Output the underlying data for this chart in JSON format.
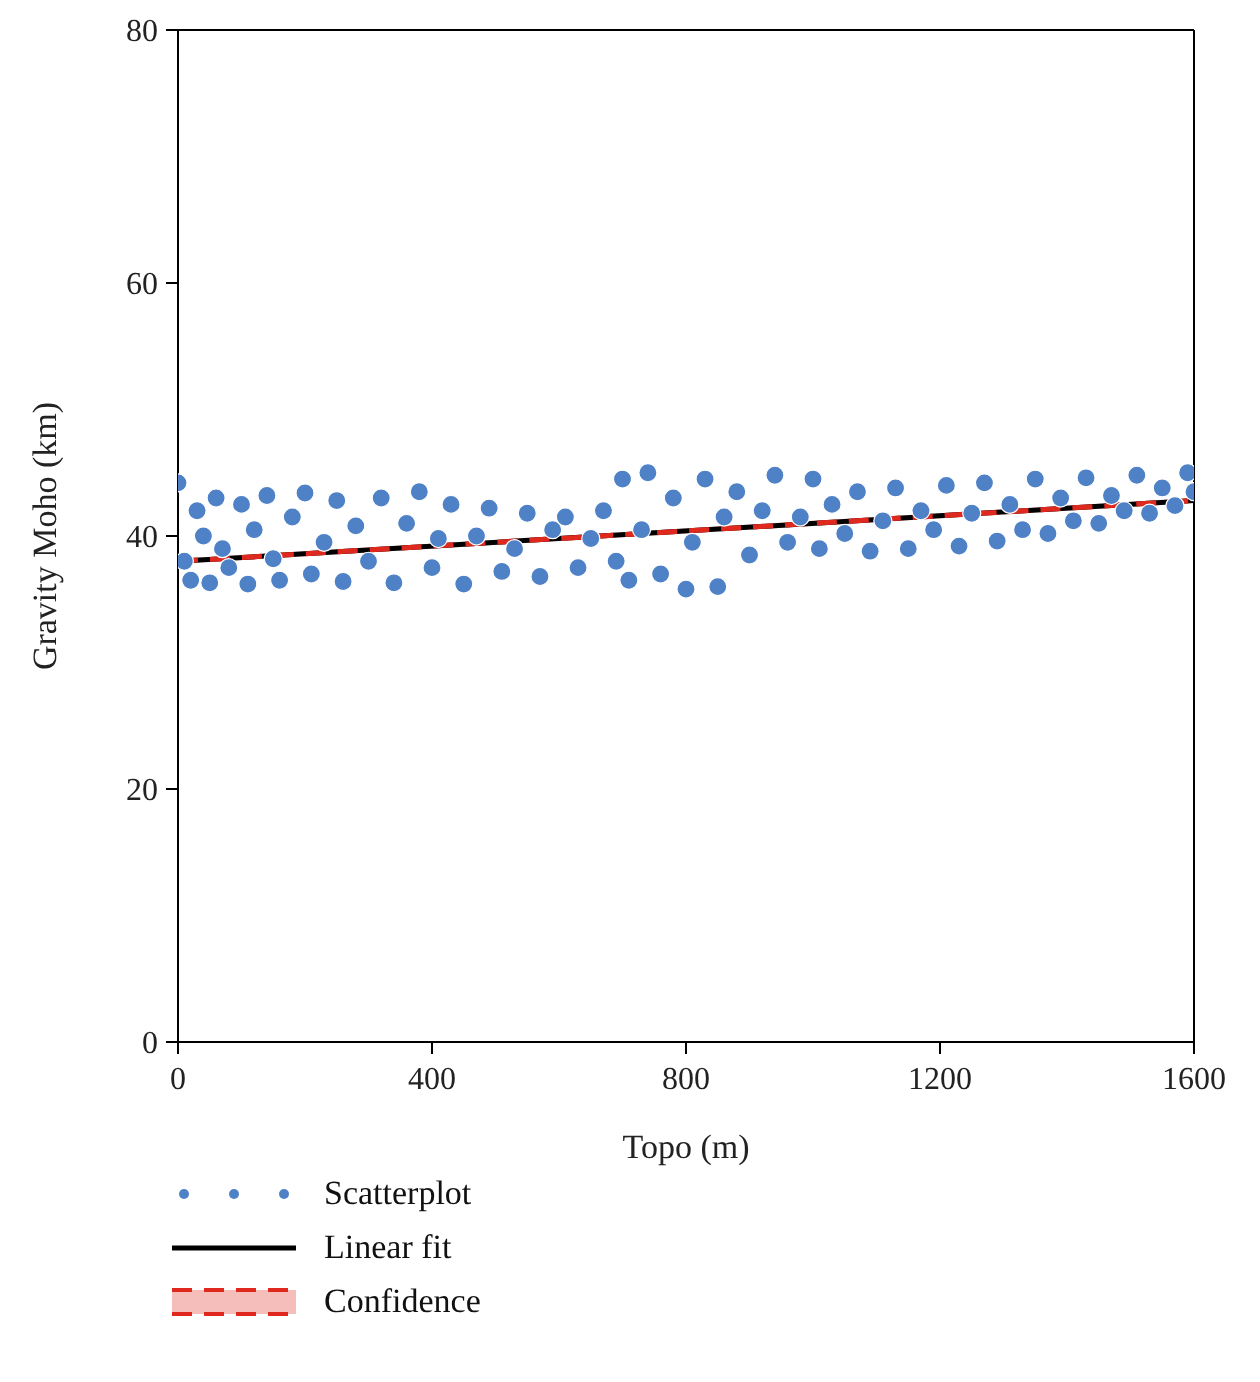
{
  "chart_data": {
    "type": "scatter",
    "xlabel": "Topo (m)",
    "ylabel": "Gravity Moho (km)",
    "xlim": [
      0,
      1600
    ],
    "xticks": [
      0,
      400,
      800,
      1200,
      1600
    ],
    "ylim": [
      0,
      80
    ],
    "yticks": [
      0,
      20,
      40,
      60,
      80
    ],
    "grid": false,
    "legend": "bottom left",
    "series": [
      {
        "name": "Scatterplot",
        "marker": "circle",
        "color": "#4f81c7",
        "x": [
          0,
          10,
          20,
          30,
          40,
          50,
          60,
          70,
          80,
          100,
          110,
          120,
          140,
          150,
          160,
          180,
          200,
          210,
          230,
          250,
          260,
          280,
          300,
          320,
          340,
          360,
          380,
          400,
          410,
          430,
          450,
          470,
          490,
          510,
          530,
          550,
          570,
          590,
          610,
          630,
          650,
          670,
          690,
          700,
          710,
          730,
          740,
          760,
          780,
          800,
          810,
          830,
          850,
          860,
          880,
          900,
          920,
          940,
          960,
          980,
          1000,
          1010,
          1030,
          1050,
          1070,
          1090,
          1110,
          1130,
          1150,
          1170,
          1190,
          1210,
          1230,
          1250,
          1270,
          1290,
          1310,
          1330,
          1350,
          1370,
          1390,
          1410,
          1430,
          1450,
          1470,
          1490,
          1510,
          1530,
          1550,
          1570,
          1590,
          1600
        ],
        "values": [
          44.2,
          38,
          36.5,
          42,
          40,
          36.3,
          43,
          39,
          37.5,
          42.5,
          36.2,
          40.5,
          43.2,
          38.2,
          36.5,
          41.5,
          43.4,
          37,
          39.5,
          42.8,
          36.4,
          40.8,
          38,
          43,
          36.3,
          41,
          43.5,
          37.5,
          39.8,
          42.5,
          36.2,
          40,
          42.2,
          37.2,
          39,
          41.8,
          36.8,
          40.5,
          41.5,
          37.5,
          39.8,
          42,
          38,
          44.5,
          36.5,
          40.5,
          45,
          37,
          43,
          35.8,
          39.5,
          44.5,
          36,
          41.5,
          43.5,
          38.5,
          42,
          44.8,
          39.5,
          41.5,
          44.5,
          39,
          42.5,
          40.2,
          43.5,
          38.8,
          41.2,
          43.8,
          39,
          42,
          40.5,
          44,
          39.2,
          41.8,
          44.2,
          39.6,
          42.5,
          40.5,
          44.5,
          40.2,
          43,
          41.2,
          44.6,
          41,
          43.2,
          42,
          44.8,
          41.8,
          43.8,
          42.4,
          45,
          43.5
        ]
      },
      {
        "name": "Linear fit",
        "type": "line",
        "color": "#000000",
        "line_style": "solid",
        "x": [
          0,
          1600
        ],
        "values": [
          38,
          42.8
        ]
      },
      {
        "name": "Confidence",
        "type": "line",
        "color": "#e0291e",
        "line_style": "dashed",
        "x": [
          0,
          1600
        ],
        "values": [
          38,
          42.8
        ],
        "lower": [
          37.8,
          42.6
        ],
        "upper": [
          38.2,
          43
        ]
      }
    ]
  }
}
